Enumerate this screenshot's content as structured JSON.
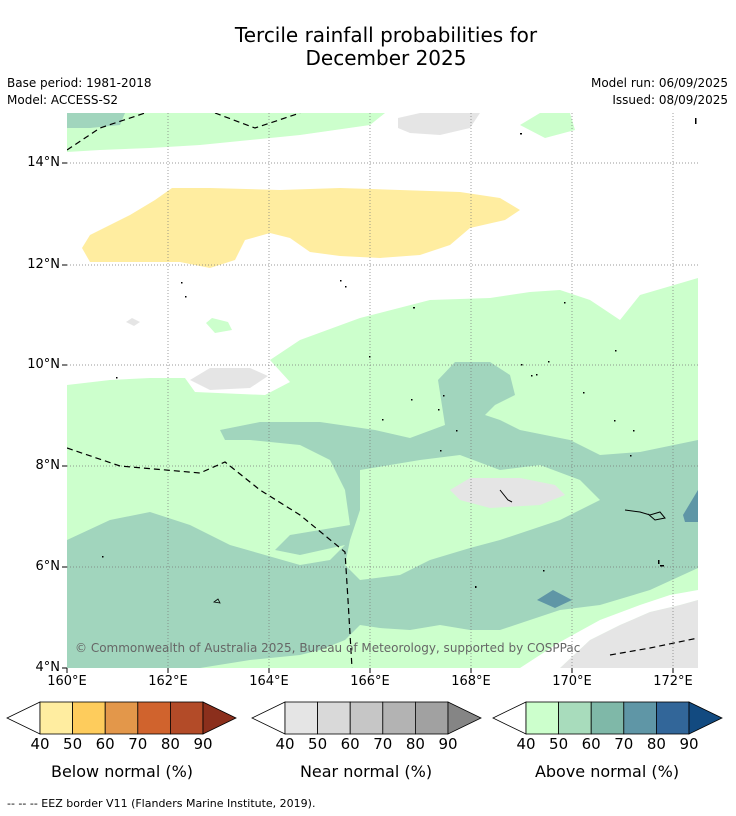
{
  "title_line1": "Tercile rainfall probabilities for",
  "title_line2": "December 2025",
  "base_period": "Base period: 1981-2018",
  "model": "Model: ACCESS-S2",
  "model_run": "Model run: 06/09/2025",
  "issued": "Issued: 08/09/2025",
  "copyright": "© Commonwealth of Australia 2025, Bureau of Meteorology, supported by COSPPac",
  "lat_labels": [
    "14°N",
    "12°N",
    "10°N",
    "8°N",
    "6°N",
    "4°N"
  ],
  "lon_labels": [
    "160°E",
    "162°E",
    "164°E",
    "166°E",
    "168°E",
    "170°E",
    "172°E"
  ],
  "colors": {
    "near_normal_40": "#e5e5e5",
    "below_normal_40": "#ffeda0",
    "above_normal_40": "#ccffcc",
    "above_normal_50": "#a1d5bd",
    "above_normal_60": "#7fb8a8",
    "above_normal_70": "#5f96a6"
  },
  "legends": [
    {
      "title": "Below normal (%)",
      "ticks": [
        "40",
        "50",
        "60",
        "70",
        "80",
        "90"
      ],
      "colors": [
        "#ffeda0",
        "#fecc5c",
        "#e3974a",
        "#d0632d",
        "#b34b28",
        "#8b2f1c"
      ]
    },
    {
      "title": "Near normal (%)",
      "ticks": [
        "40",
        "50",
        "60",
        "70",
        "80",
        "90"
      ],
      "colors": [
        "#e5e5e5",
        "#d9d9d9",
        "#c6c6c6",
        "#b3b3b3",
        "#a1a1a1",
        "#858585"
      ]
    },
    {
      "title": "Above normal (%)",
      "ticks": [
        "40",
        "50",
        "60",
        "70",
        "80",
        "90"
      ],
      "colors": [
        "#ccffcc",
        "#a8dcbc",
        "#7fb8a8",
        "#5f96a6",
        "#326699",
        "#124a80"
      ]
    }
  ],
  "footnote": "--  --  -- EEZ border V11 (Flanders Marine Institute, 2019)."
}
